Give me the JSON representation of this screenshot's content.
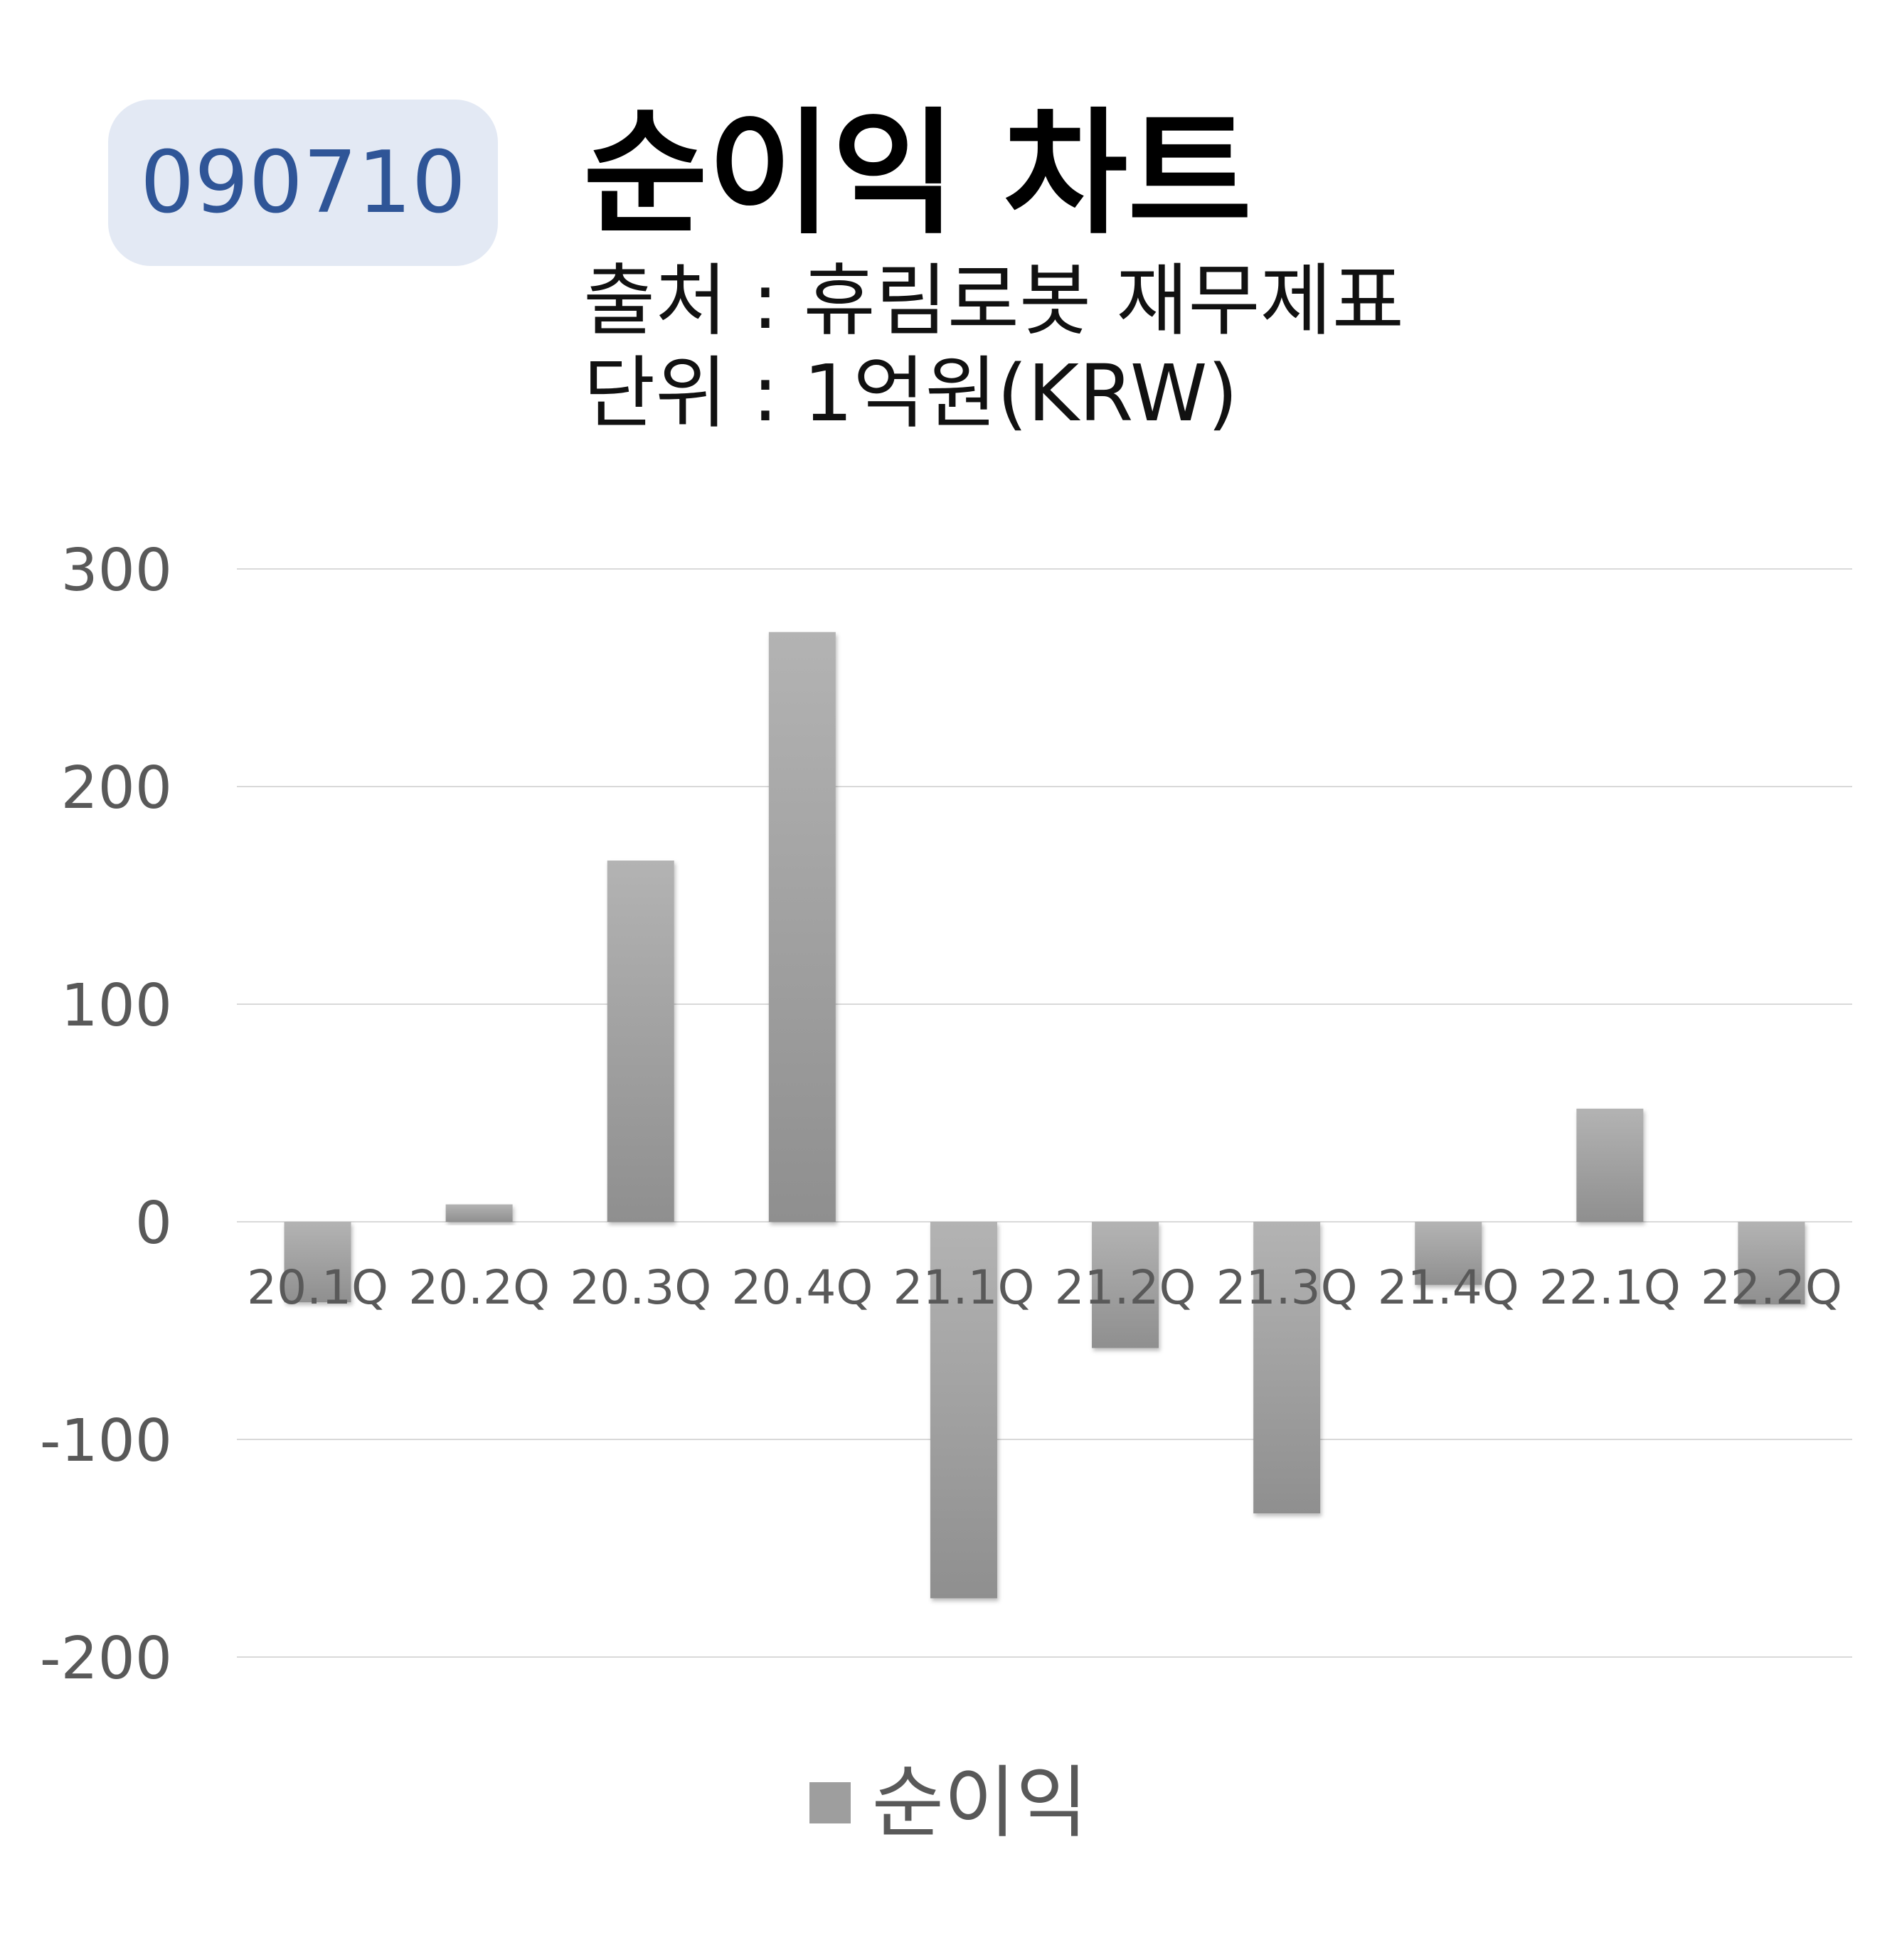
{
  "header": {
    "code": "090710",
    "title": "순이익 차트",
    "source": "출처 : 휴림로봇 재무제표",
    "unit": "단위 : 1억원(KRW)"
  },
  "colors": {
    "badge_bg": "#e3e9f4",
    "badge_text": "#2f5597",
    "bar_fill_light": "#b3b3b3",
    "bar_fill_dark": "#8f8f8f",
    "grid": "#d9d9d9",
    "axis_text": "#595959"
  },
  "chart_data": {
    "type": "bar",
    "categories": [
      "20.1Q",
      "20.2Q",
      "20.3Q",
      "20.4Q",
      "21.1Q",
      "21.2Q",
      "21.3Q",
      "21.4Q",
      "22.1Q",
      "22.2Q"
    ],
    "series": [
      {
        "name": "순이익",
        "values": [
          -37,
          8,
          166,
          271,
          -173,
          -58,
          -134,
          -29,
          52,
          -38
        ]
      }
    ],
    "ylim": [
      -200,
      300
    ],
    "yticks": [
      "300",
      "200",
      "100",
      "0",
      "-100",
      "-200"
    ],
    "grid": true,
    "legend": "bottom"
  }
}
